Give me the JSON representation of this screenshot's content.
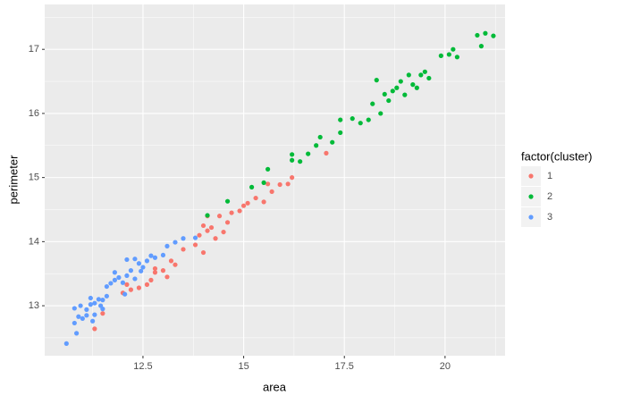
{
  "chart_data": {
    "type": "scatter",
    "x_label": "area",
    "y_label": "perimeter",
    "legend_title": "factor(cluster)",
    "xlim": [
      10.06,
      21.49
    ],
    "ylim": [
      12.22,
      17.7
    ],
    "xticks": [
      12.5,
      15.0,
      17.5,
      20.0
    ],
    "yticks": [
      13,
      14,
      15,
      16,
      17
    ],
    "grid": true,
    "legend_position": "right",
    "series": [
      {
        "name": "1",
        "color": "#F8766D",
        "x": [
          11.3,
          11.5,
          12.0,
          12.2,
          12.4,
          12.6,
          12.7,
          12.8,
          12.8,
          13.0,
          13.2,
          13.3,
          13.5,
          13.8,
          13.9,
          14.0,
          14.1,
          14.2,
          14.3,
          14.4,
          14.5,
          14.6,
          14.9,
          15.0,
          15.1,
          15.3,
          15.5,
          15.7,
          15.9,
          16.1,
          16.2,
          17.05,
          14.1,
          14.7,
          14.0,
          15.6,
          12.1,
          13.1
        ],
        "values": [
          12.64,
          12.88,
          13.2,
          13.25,
          13.28,
          13.33,
          13.4,
          13.52,
          13.58,
          13.55,
          13.7,
          13.64,
          13.88,
          13.95,
          14.1,
          13.83,
          14.17,
          14.22,
          14.05,
          14.4,
          14.15,
          14.3,
          14.48,
          14.56,
          14.6,
          14.68,
          14.62,
          14.78,
          14.89,
          14.9,
          15.0,
          15.38,
          14.4,
          14.45,
          14.25,
          14.9,
          13.33,
          13.45
        ]
      },
      {
        "name": "2",
        "color": "#00BA38",
        "x": [
          14.1,
          14.6,
          15.2,
          15.5,
          15.6,
          16.2,
          16.2,
          16.4,
          16.6,
          16.8,
          16.9,
          17.2,
          17.4,
          17.4,
          17.7,
          17.9,
          18.1,
          18.2,
          18.3,
          18.4,
          18.5,
          18.6,
          18.8,
          18.9,
          19.0,
          19.1,
          19.2,
          19.4,
          19.5,
          19.6,
          19.9,
          20.1,
          20.2,
          20.3,
          20.8,
          21.0,
          21.2,
          20.9,
          18.7,
          19.3
        ],
        "values": [
          14.41,
          14.63,
          14.85,
          14.92,
          15.13,
          15.27,
          15.36,
          15.25,
          15.37,
          15.5,
          15.63,
          15.55,
          15.9,
          15.7,
          15.92,
          15.85,
          15.9,
          16.15,
          16.52,
          16.0,
          16.3,
          16.2,
          16.4,
          16.5,
          16.29,
          16.6,
          16.45,
          16.6,
          16.65,
          16.55,
          16.9,
          16.92,
          17.0,
          16.88,
          17.22,
          17.25,
          17.21,
          17.05,
          16.35,
          16.4
        ]
      },
      {
        "name": "3",
        "color": "#619CFF",
        "x": [
          10.6,
          10.8,
          10.8,
          10.9,
          10.85,
          11.0,
          11.1,
          11.2,
          11.2,
          11.3,
          11.3,
          11.4,
          11.5,
          11.5,
          11.6,
          11.6,
          11.7,
          11.8,
          11.9,
          12.0,
          12.1,
          12.1,
          12.2,
          12.3,
          12.4,
          12.5,
          12.6,
          12.7,
          12.8,
          13.0,
          13.1,
          13.3,
          13.5,
          13.8,
          11.25,
          11.1,
          12.05,
          12.3,
          12.45,
          11.8,
          10.95,
          11.45
        ],
        "values": [
          12.41,
          12.73,
          12.96,
          12.83,
          12.57,
          12.8,
          12.94,
          13.02,
          13.12,
          12.86,
          13.04,
          13.1,
          13.09,
          12.95,
          13.15,
          13.3,
          13.35,
          13.52,
          13.44,
          13.36,
          13.47,
          13.72,
          13.55,
          13.42,
          13.66,
          13.6,
          13.7,
          13.78,
          13.75,
          13.79,
          13.93,
          13.99,
          14.05,
          14.06,
          12.76,
          12.85,
          13.18,
          13.73,
          13.54,
          13.4,
          13.0,
          13.0
        ]
      }
    ]
  }
}
